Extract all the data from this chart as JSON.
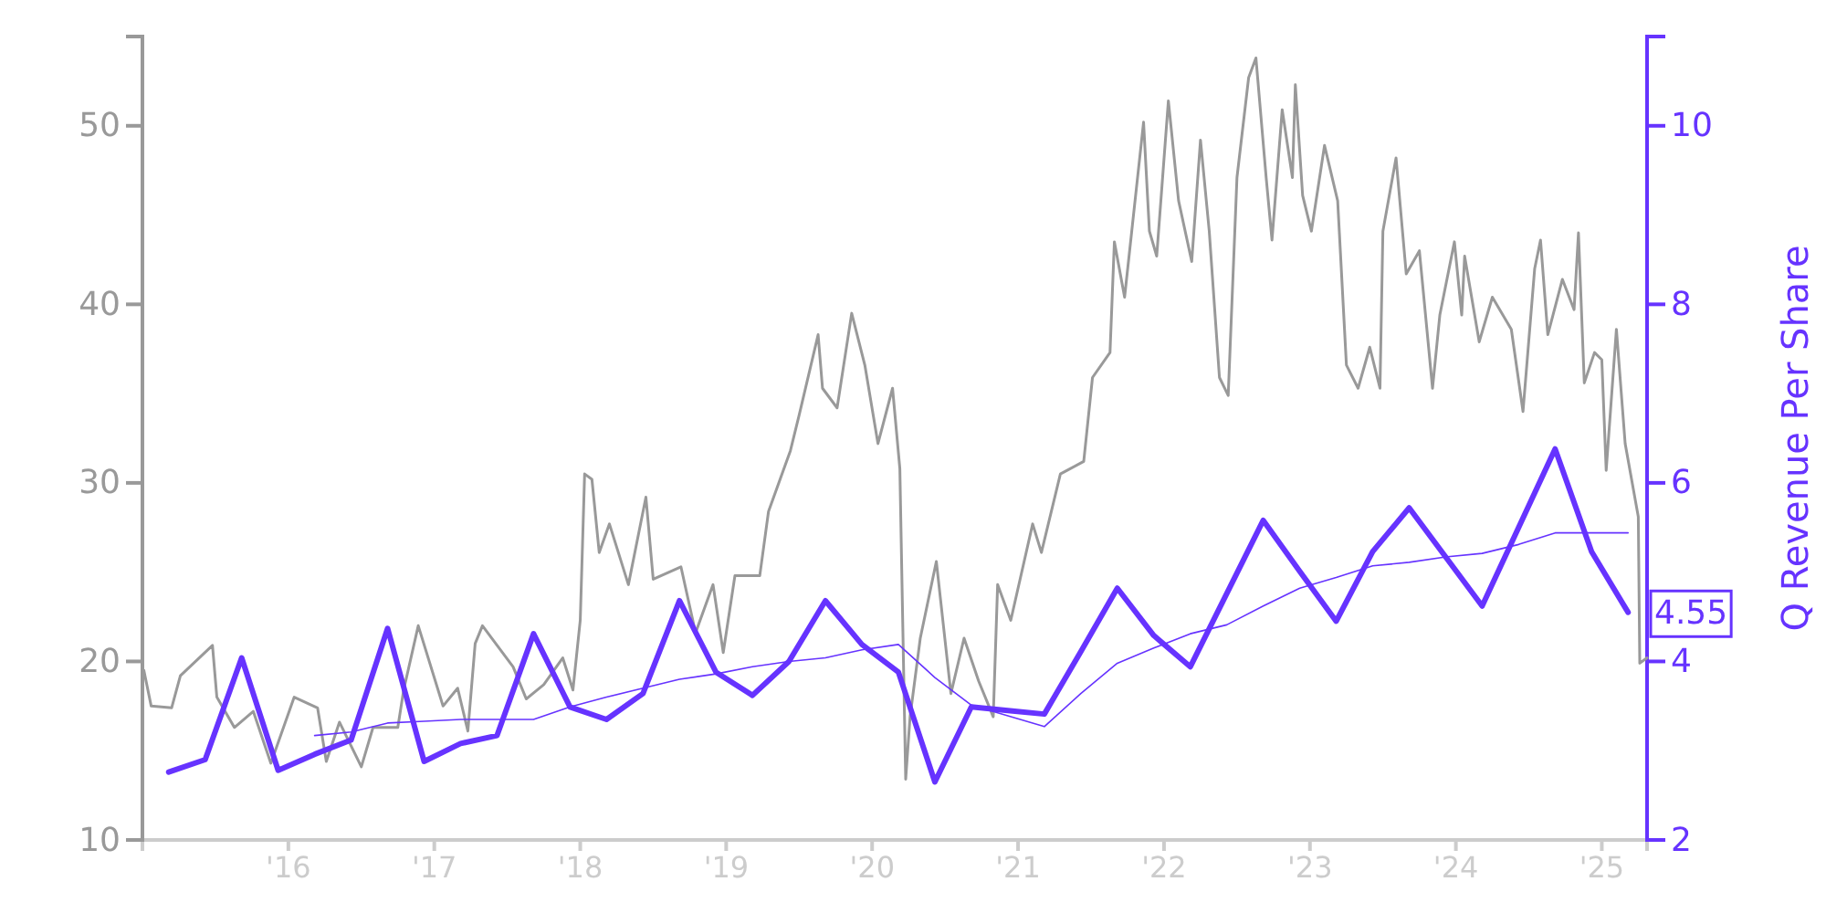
{
  "chart_data": {
    "type": "line",
    "y2label": "Q Revenue Per Share",
    "xlim": [
      2015.0,
      2025.31
    ],
    "xticks": [
      {
        "value": 2016,
        "label": "'16"
      },
      {
        "value": 2017,
        "label": "'17"
      },
      {
        "value": 2018,
        "label": "'18"
      },
      {
        "value": 2019,
        "label": "'19"
      },
      {
        "value": 2020,
        "label": "'20"
      },
      {
        "value": 2021,
        "label": "'21"
      },
      {
        "value": 2022,
        "label": "'22"
      },
      {
        "value": 2023,
        "label": "'23"
      },
      {
        "value": 2024,
        "label": "'24"
      },
      {
        "value": 2025,
        "label": "'25"
      }
    ],
    "ylim": [
      10,
      55
    ],
    "yticks": [
      10,
      20,
      30,
      40,
      50
    ],
    "y2lim": [
      2,
      11
    ],
    "y2ticks": [
      2,
      4,
      6,
      8,
      10
    ],
    "grid": false,
    "annotations": [
      "4.55"
    ],
    "series": [
      {
        "color": "#999999",
        "x": [
          2015.01,
          2015.06,
          2015.2,
          2015.26,
          2015.48,
          2015.51,
          2015.63,
          2015.76,
          2015.88,
          2016.04,
          2016.2,
          2016.26,
          2016.35,
          2016.5,
          2016.58,
          2016.75,
          2016.79,
          2016.89,
          2017.06,
          2017.16,
          2017.23,
          2017.28,
          2017.33,
          2017.54,
          2017.63,
          2017.75,
          2017.88,
          2017.95,
          2018.0,
          2018.03,
          2018.08,
          2018.13,
          2018.2,
          2018.33,
          2018.45,
          2018.5,
          2018.69,
          2018.79,
          2018.91,
          2018.98,
          2019.06,
          2019.23,
          2019.29,
          2019.44,
          2019.5,
          2019.63,
          2019.66,
          2019.76,
          2019.86,
          2019.95,
          2020.04,
          2020.14,
          2020.19,
          2020.23,
          2020.26,
          2020.33,
          2020.44,
          2020.54,
          2020.63,
          2020.73,
          2020.83,
          2020.86,
          2020.95,
          2021.1,
          2021.16,
          2021.29,
          2021.45,
          2021.51,
          2021.63,
          2021.66,
          2021.73,
          2021.86,
          2021.9,
          2021.95,
          2022.03,
          2022.1,
          2022.19,
          2022.25,
          2022.31,
          2022.38,
          2022.44,
          2022.5,
          2022.58,
          2022.63,
          2022.7,
          2022.74,
          2022.81,
          2022.88,
          2022.9,
          2022.95,
          2023.01,
          2023.1,
          2023.19,
          2023.25,
          2023.33,
          2023.41,
          2023.48,
          2023.5,
          2023.59,
          2023.66,
          2023.75,
          2023.84,
          2023.89,
          2023.99,
          2024.04,
          2024.06,
          2024.16,
          2024.25,
          2024.38,
          2024.46,
          2024.54,
          2024.58,
          2024.63,
          2024.73,
          2024.81,
          2024.84,
          2024.88,
          2024.95,
          2025.0,
          2025.03,
          2025.1,
          2025.16,
          2025.25,
          2025.26,
          2025.31
        ],
        "values": [
          19.5,
          17.5,
          17.4,
          19.2,
          20.9,
          18.0,
          16.3,
          17.2,
          14.3,
          18.0,
          17.4,
          14.4,
          16.6,
          14.1,
          16.3,
          16.3,
          18.4,
          22.0,
          17.5,
          18.5,
          16.1,
          21.0,
          22.0,
          19.7,
          17.9,
          18.7,
          20.2,
          18.4,
          22.3,
          30.5,
          30.2,
          26.1,
          27.7,
          24.3,
          29.2,
          24.6,
          25.3,
          21.6,
          24.3,
          20.5,
          24.8,
          24.8,
          28.4,
          31.8,
          33.8,
          38.3,
          35.3,
          34.2,
          39.5,
          36.6,
          32.2,
          35.3,
          30.8,
          13.4,
          16.9,
          21.3,
          25.6,
          18.2,
          21.3,
          18.9,
          16.9,
          24.3,
          22.3,
          27.7,
          26.1,
          30.5,
          31.2,
          35.9,
          37.3,
          43.5,
          40.4,
          50.2,
          44.1,
          42.7,
          51.4,
          45.8,
          42.4,
          49.2,
          44.1,
          35.9,
          34.9,
          47.1,
          52.7,
          53.8,
          47.1,
          43.6,
          50.9,
          47.1,
          52.3,
          46.1,
          44.1,
          48.9,
          45.8,
          36.6,
          35.3,
          37.6,
          35.3,
          44.1,
          48.2,
          41.7,
          43.0,
          35.3,
          39.4,
          43.5,
          39.4,
          42.7,
          37.9,
          40.4,
          38.6,
          34.0,
          42.0,
          43.6,
          38.3,
          41.4,
          39.7,
          44.0,
          35.6,
          37.3,
          36.9,
          30.7,
          38.6,
          32.2,
          28.1,
          19.9,
          20.2
        ]
      },
      {
        "color": "#6633ff",
        "axis": "y2",
        "x": [
          2015.18,
          2015.43,
          2015.68,
          2015.93,
          2016.18,
          2016.43,
          2016.68,
          2016.93,
          2017.18,
          2017.43,
          2017.68,
          2017.93,
          2018.18,
          2018.43,
          2018.68,
          2018.93,
          2019.18,
          2019.43,
          2019.68,
          2019.93,
          2020.18,
          2020.43,
          2020.68,
          2020.93,
          2021.18,
          2021.43,
          2021.68,
          2021.93,
          2022.18,
          2022.43,
          2022.68,
          2022.93,
          2023.18,
          2023.43,
          2023.68,
          2023.93,
          2024.18,
          2024.43,
          2024.68,
          2024.93,
          2025.18
        ],
        "values": [
          2.76,
          2.9,
          4.04,
          2.78,
          2.96,
          3.12,
          4.37,
          2.88,
          3.08,
          3.17,
          4.31,
          3.49,
          3.35,
          3.64,
          4.68,
          3.88,
          3.62,
          4.0,
          4.68,
          4.19,
          3.88,
          2.65,
          3.49,
          3.45,
          3.41,
          4.11,
          4.82,
          4.29,
          3.94,
          4.76,
          5.58,
          5.01,
          4.45,
          5.23,
          5.72,
          5.17,
          4.62,
          5.5,
          6.38,
          5.23,
          4.55
        ]
      },
      {
        "color": "#6633ff",
        "axis": "y2",
        "x": [
          2016.18,
          2016.43,
          2016.68,
          2016.93,
          2017.18,
          2017.43,
          2017.68,
          2017.93,
          2018.18,
          2018.43,
          2018.68,
          2018.93,
          2019.18,
          2019.43,
          2019.68,
          2019.93,
          2020.18,
          2020.43,
          2020.68,
          2020.93,
          2021.18,
          2021.43,
          2021.68,
          2021.93,
          2022.18,
          2022.43,
          2022.68,
          2022.93,
          2023.18,
          2023.43,
          2023.68,
          2023.93,
          2024.18,
          2024.43,
          2024.68,
          2024.93,
          2025.18
        ],
        "values": [
          3.17,
          3.21,
          3.31,
          3.33,
          3.35,
          3.35,
          3.35,
          3.49,
          3.6,
          3.7,
          3.8,
          3.86,
          3.94,
          4.0,
          4.04,
          4.13,
          4.19,
          3.82,
          3.51,
          3.39,
          3.27,
          3.64,
          3.98,
          4.15,
          4.31,
          4.41,
          4.62,
          4.82,
          4.94,
          5.07,
          5.11,
          5.17,
          5.21,
          5.31,
          5.44,
          5.44,
          5.44
        ]
      }
    ]
  }
}
